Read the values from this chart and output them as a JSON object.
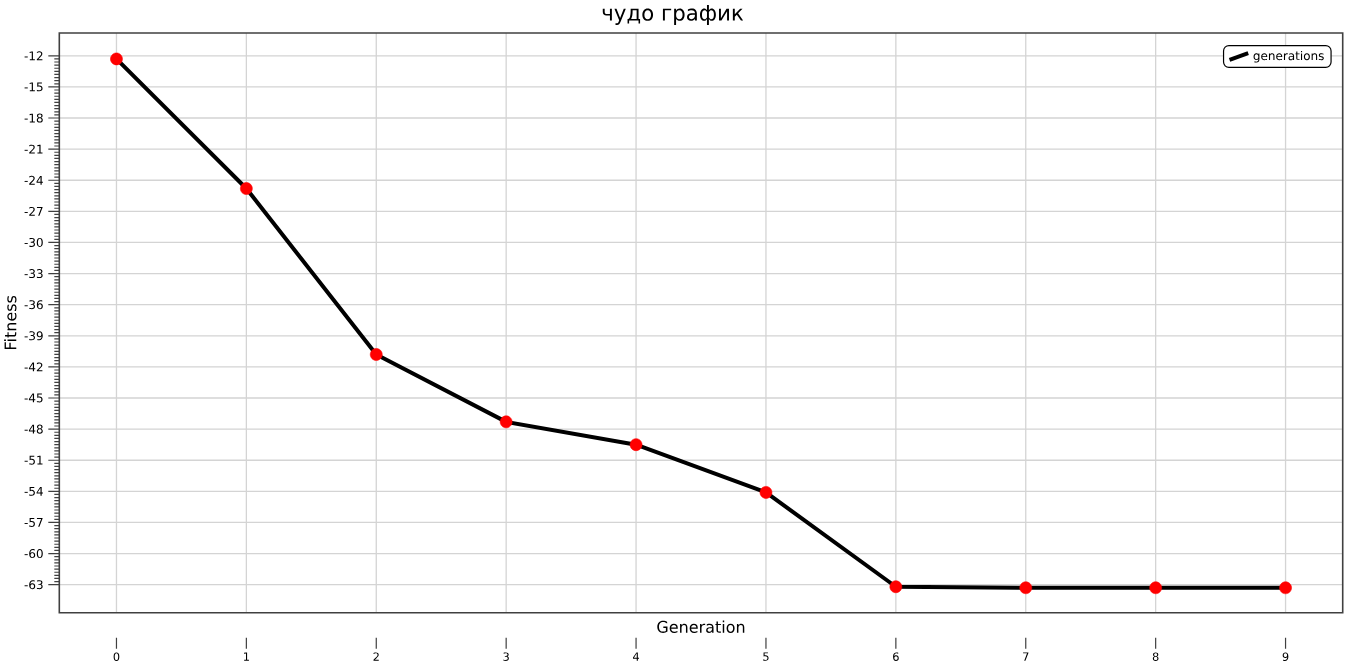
{
  "chart_data": {
    "type": "line",
    "title": "чудо график",
    "xlabel": "Generation",
    "ylabel": "Fitness",
    "x": [
      0,
      1,
      2,
      3,
      4,
      5,
      6,
      7,
      8,
      9
    ],
    "series": [
      {
        "name": "generations",
        "color": "#000000",
        "colors": [
          "#ff0000",
          "#ff0000",
          "#ff0000",
          "#ff0000",
          "#ff0000",
          "#ff0000",
          "#ff0000",
          "#ff0000",
          "#ff0000",
          "#ff0000"
        ],
        "values": [
          -12.3,
          -24.8,
          -40.8,
          -47.3,
          -49.5,
          -54.1,
          -63.2,
          -63.3,
          -63.3,
          -63.3
        ]
      }
    ],
    "xlim": [
      -0.44,
      9.44
    ],
    "ylim": [
      -65.7,
      -9.8
    ],
    "xticks": [
      0,
      1,
      2,
      3,
      4,
      5,
      6,
      7,
      8,
      9
    ],
    "yticks": [
      -63,
      -60,
      -57,
      -54,
      -51,
      -48,
      -45,
      -42,
      -39,
      -36,
      -33,
      -30,
      -27,
      -24,
      -21,
      -18,
      -15,
      -12
    ],
    "grid": true,
    "legend": "top right",
    "marker": "circle",
    "line_style": "solid"
  }
}
